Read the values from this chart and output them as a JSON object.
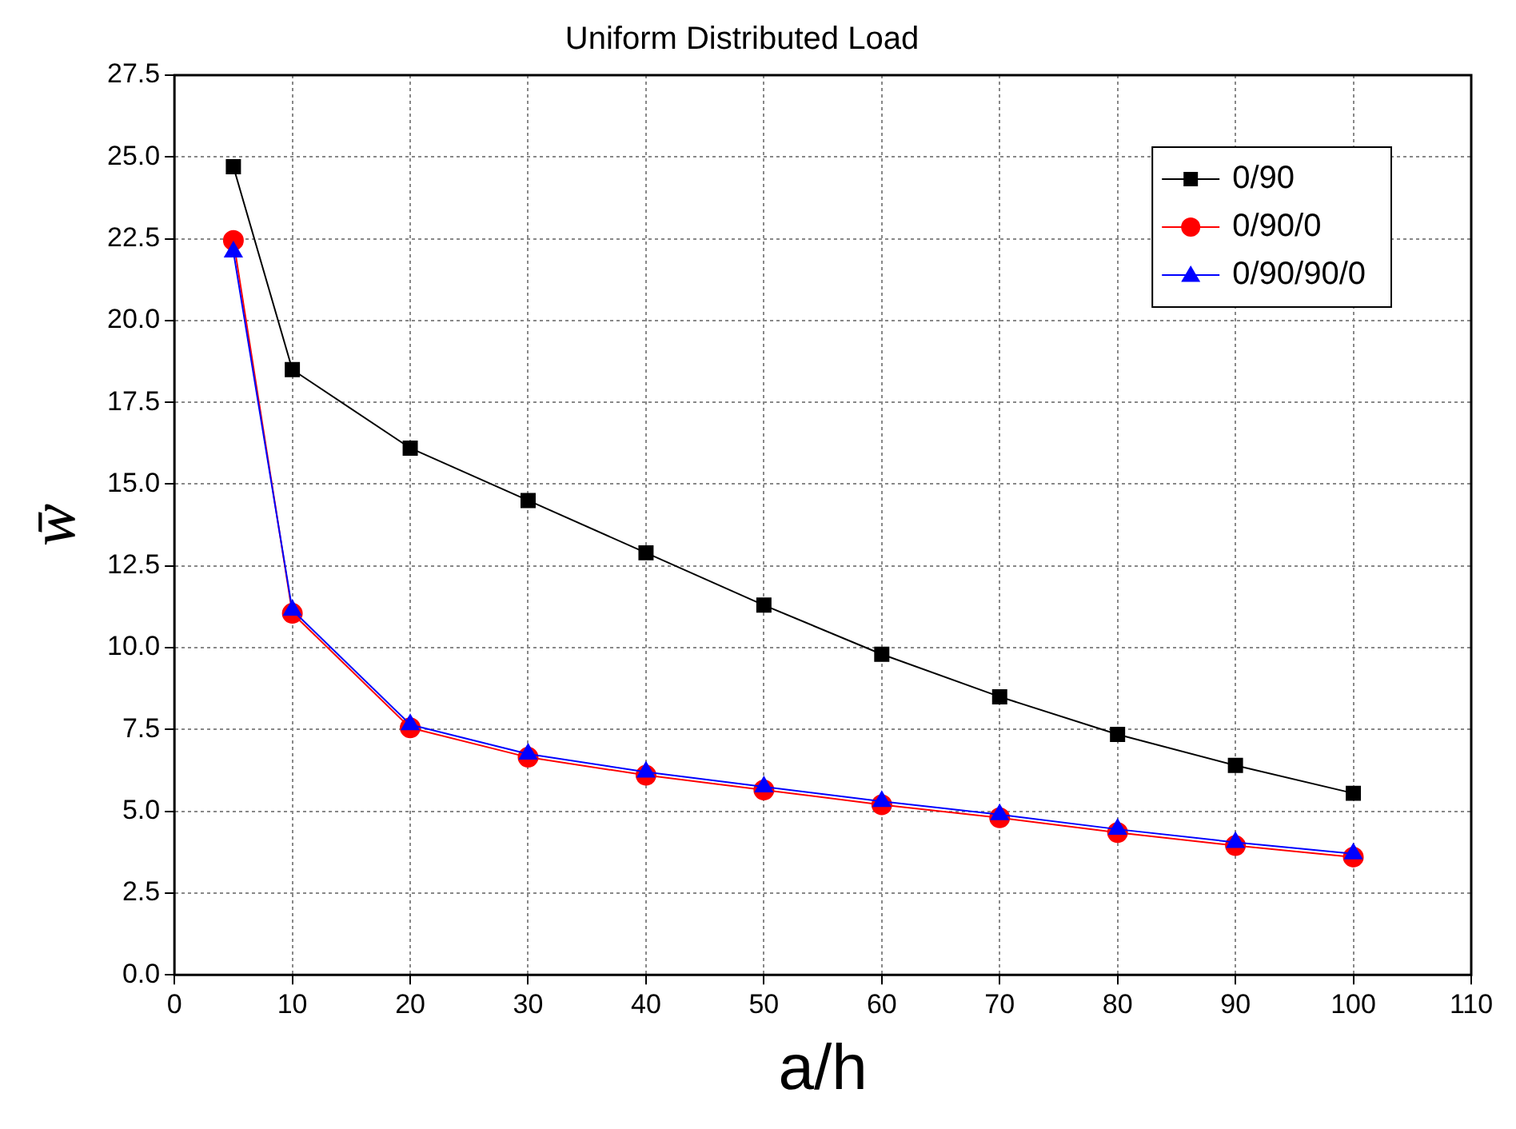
{
  "chart_data": {
    "type": "line",
    "title": "Uniform Distributed Load",
    "xlabel": "a/h",
    "ylabel": "w̄",
    "x": [
      5,
      10,
      20,
      30,
      40,
      50,
      60,
      70,
      80,
      90,
      100
    ],
    "series": [
      {
        "name": "0/90",
        "color": "#000000",
        "marker": "square",
        "values": [
          24.7,
          18.5,
          16.1,
          14.5,
          12.9,
          11.3,
          9.8,
          8.5,
          7.35,
          6.4,
          5.55
        ]
      },
      {
        "name": "0/90/0",
        "color": "#ff0000",
        "marker": "circle",
        "values": [
          22.45,
          11.05,
          7.55,
          6.65,
          6.1,
          5.65,
          5.2,
          4.8,
          4.35,
          3.95,
          3.6
        ]
      },
      {
        "name": "0/90/90/0",
        "color": "#0000ff",
        "marker": "triangle",
        "values": [
          22.1,
          11.15,
          7.65,
          6.75,
          6.2,
          5.75,
          5.3,
          4.9,
          4.45,
          4.05,
          3.7
        ]
      }
    ],
    "xlim": [
      0,
      110
    ],
    "xticks": [
      0,
      10,
      20,
      30,
      40,
      50,
      60,
      70,
      80,
      90,
      100,
      110
    ],
    "ylim": [
      0,
      27.5
    ],
    "yticks": [
      {
        "value": 0,
        "label": "0.0"
      },
      2.5,
      {
        "value": 5,
        "label": "5.0"
      },
      7.5,
      {
        "value": 10,
        "label": "10.0"
      },
      12.5,
      {
        "value": 15,
        "label": "15.0"
      },
      17.5,
      {
        "value": 20,
        "label": "20.0"
      },
      22.5,
      {
        "value": 25,
        "label": "25.0"
      },
      27.5
    ],
    "grid": true,
    "legend": "top right",
    "line_style": "solid"
  }
}
